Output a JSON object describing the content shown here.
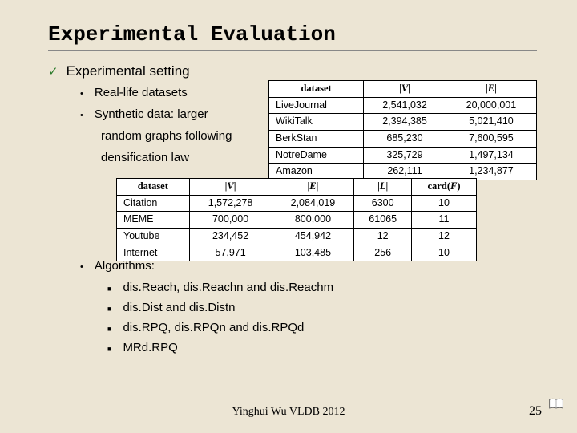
{
  "title": "Experimental Evaluation",
  "main_bullet": "Experimental setting",
  "sub1": "Real-life datasets",
  "sub2": "Synthetic data: larger",
  "sub2_l2": "random graphs following",
  "sub2_l3": "densification law",
  "table1": {
    "headers": [
      "dataset",
      "|V|",
      "|E|"
    ],
    "rows": [
      [
        "LiveJournal",
        "2,541,032",
        "20,000,001"
      ],
      [
        "WikiTalk",
        "2,394,385",
        "5,021,410"
      ],
      [
        "BerkStan",
        "685,230",
        "7,600,595"
      ],
      [
        "NotreDame",
        "325,729",
        "1,497,134"
      ],
      [
        "Amazon",
        "262,111",
        "1,234,877"
      ]
    ]
  },
  "table2": {
    "headers": [
      "dataset",
      "|V|",
      "|E|",
      "|L|",
      "card(F)"
    ],
    "rows": [
      [
        "Citation",
        "1,572,278",
        "2,084,019",
        "6300",
        "10"
      ],
      [
        "MEME",
        "700,000",
        "800,000",
        "61065",
        "11"
      ],
      [
        "Youtube",
        "234,452",
        "454,942",
        "12",
        "12"
      ],
      [
        "Internet",
        "57,971",
        "103,485",
        "256",
        "10"
      ]
    ]
  },
  "algo_label": "Algorithms:",
  "algos": [
    "dis.Reach, dis.Reachn and dis.Reachm",
    "dis.Dist and dis.Distn",
    "dis.RPQ, dis.RPQn and dis.RPQd",
    "MRd.RPQ"
  ],
  "footer": "Yinghui Wu VLDB 2012",
  "page": "25",
  "colors": {
    "bg": "#ece5d4",
    "check": "#2a7a2a"
  }
}
